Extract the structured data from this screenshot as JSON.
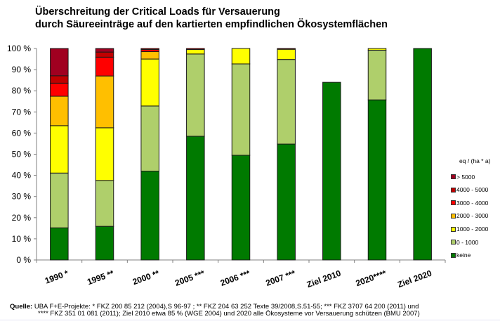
{
  "chart_data": {
    "type": "bar",
    "stacked": true,
    "title": "Überschreitung der Critical Loads für Versauerung",
    "subtitle": "durch Säureeinträge auf den kartierten empfindlichen Ökosystemflächen",
    "xlabel": "",
    "ylabel": "",
    "ylim": [
      0,
      100
    ],
    "yticks": [
      "0 %",
      "10 %",
      "20 %",
      "30 %",
      "40 %",
      "50 %",
      "60 %",
      "70 %",
      "80 %",
      "90 %",
      "100 %"
    ],
    "grid": false,
    "legend_title": "eq / (ha * a)",
    "legend_position": "right",
    "categories": [
      "1990 *",
      "1995 **",
      "2000 **",
      "2005 ***",
      "2006 ***",
      "2007 ***",
      "Ziel 2010",
      "2020****",
      "Ziel 2020"
    ],
    "series": [
      {
        "name": "keine",
        "color": "#007a00",
        "values": [
          15.2,
          15.9,
          42.0,
          58.5,
          49.5,
          54.8,
          84.0,
          75.7,
          100.0
        ]
      },
      {
        "name": "0 - 1000",
        "color": "#afcf6b",
        "values": [
          25.9,
          21.7,
          30.8,
          38.9,
          43.2,
          40.0,
          0,
          23.5,
          0
        ]
      },
      {
        "name": "1000 - 2000",
        "color": "#ffff00",
        "values": [
          22.4,
          24.9,
          22.2,
          2.1,
          7.3,
          4.8,
          0,
          0.8,
          0
        ]
      },
      {
        "name": "2000 - 3000",
        "color": "#ffbf00",
        "values": [
          13.9,
          24.5,
          3.5,
          0,
          0,
          0,
          0,
          0,
          0
        ]
      },
      {
        "name": "3000 - 4000",
        "color": "#ff0000",
        "values": [
          6.2,
          8.9,
          1.0,
          0,
          0,
          0,
          0,
          0,
          0
        ]
      },
      {
        "name": "4000 - 5000",
        "color": "#c00000",
        "values": [
          3.5,
          2.4,
          0.5,
          0.5,
          0,
          0.4,
          0,
          0,
          0
        ]
      },
      {
        "name": "> 5000",
        "color": "#a00020",
        "values": [
          12.9,
          1.7,
          0,
          0,
          0,
          0,
          0,
          0,
          0
        ]
      }
    ]
  },
  "legend": {
    "title": "eq / (ha * a)",
    "items": [
      {
        "label": "> 5000",
        "color": "#a00020"
      },
      {
        "label": "4000 - 5000",
        "color": "#c00000"
      },
      {
        "label": "3000 - 4000",
        "color": "#ff0000"
      },
      {
        "label": "2000 - 3000",
        "color": "#ffbf00"
      },
      {
        "label": "1000 - 2000",
        "color": "#ffff00"
      },
      {
        "label": "0 - 1000",
        "color": "#afcf6b"
      },
      {
        "label": "keine",
        "color": "#007a00"
      }
    ]
  },
  "source": {
    "label": "Quelle:",
    "line1": " UBA F+E-Projekte:  * FKZ 200 85 212 (2004),S 96-97 ; ** FKZ 204 63 252 Texte 39/2008,S.51-55;  *** FKZ 3707 64 200 (2011) und",
    "line2": "**** FKZ 351 01 081 (2011);  Ziel 2010 etwa 85 % (WGE 2004) und 2020 alle Ökosysteme vor Versauerung schützen (BMU 2007)"
  }
}
